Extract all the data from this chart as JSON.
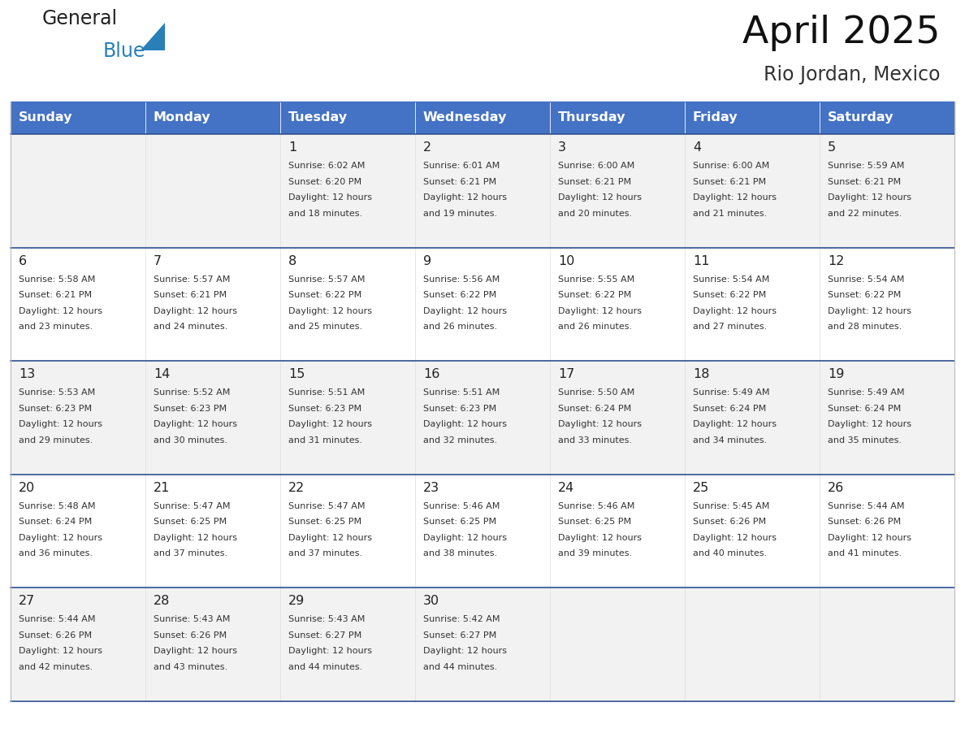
{
  "title": "April 2025",
  "subtitle": "Rio Jordan, Mexico",
  "header_color": "#4472C4",
  "header_text_color": "#FFFFFF",
  "row_separator_color": "#2F528F",
  "cell_bg_light": "#F2F2F2",
  "cell_bg_white": "#FFFFFF",
  "day_names": [
    "Sunday",
    "Monday",
    "Tuesday",
    "Wednesday",
    "Thursday",
    "Friday",
    "Saturday"
  ],
  "weeks": [
    [
      {
        "day": "",
        "sunrise": "",
        "sunset": "",
        "daylight": ""
      },
      {
        "day": "",
        "sunrise": "",
        "sunset": "",
        "daylight": ""
      },
      {
        "day": "1",
        "sunrise": "Sunrise: 6:02 AM",
        "sunset": "Sunset: 6:20 PM",
        "daylight": "Daylight: 12 hours\nand 18 minutes."
      },
      {
        "day": "2",
        "sunrise": "Sunrise: 6:01 AM",
        "sunset": "Sunset: 6:21 PM",
        "daylight": "Daylight: 12 hours\nand 19 minutes."
      },
      {
        "day": "3",
        "sunrise": "Sunrise: 6:00 AM",
        "sunset": "Sunset: 6:21 PM",
        "daylight": "Daylight: 12 hours\nand 20 minutes."
      },
      {
        "day": "4",
        "sunrise": "Sunrise: 6:00 AM",
        "sunset": "Sunset: 6:21 PM",
        "daylight": "Daylight: 12 hours\nand 21 minutes."
      },
      {
        "day": "5",
        "sunrise": "Sunrise: 5:59 AM",
        "sunset": "Sunset: 6:21 PM",
        "daylight": "Daylight: 12 hours\nand 22 minutes."
      }
    ],
    [
      {
        "day": "6",
        "sunrise": "Sunrise: 5:58 AM",
        "sunset": "Sunset: 6:21 PM",
        "daylight": "Daylight: 12 hours\nand 23 minutes."
      },
      {
        "day": "7",
        "sunrise": "Sunrise: 5:57 AM",
        "sunset": "Sunset: 6:21 PM",
        "daylight": "Daylight: 12 hours\nand 24 minutes."
      },
      {
        "day": "8",
        "sunrise": "Sunrise: 5:57 AM",
        "sunset": "Sunset: 6:22 PM",
        "daylight": "Daylight: 12 hours\nand 25 minutes."
      },
      {
        "day": "9",
        "sunrise": "Sunrise: 5:56 AM",
        "sunset": "Sunset: 6:22 PM",
        "daylight": "Daylight: 12 hours\nand 26 minutes."
      },
      {
        "day": "10",
        "sunrise": "Sunrise: 5:55 AM",
        "sunset": "Sunset: 6:22 PM",
        "daylight": "Daylight: 12 hours\nand 26 minutes."
      },
      {
        "day": "11",
        "sunrise": "Sunrise: 5:54 AM",
        "sunset": "Sunset: 6:22 PM",
        "daylight": "Daylight: 12 hours\nand 27 minutes."
      },
      {
        "day": "12",
        "sunrise": "Sunrise: 5:54 AM",
        "sunset": "Sunset: 6:22 PM",
        "daylight": "Daylight: 12 hours\nand 28 minutes."
      }
    ],
    [
      {
        "day": "13",
        "sunrise": "Sunrise: 5:53 AM",
        "sunset": "Sunset: 6:23 PM",
        "daylight": "Daylight: 12 hours\nand 29 minutes."
      },
      {
        "day": "14",
        "sunrise": "Sunrise: 5:52 AM",
        "sunset": "Sunset: 6:23 PM",
        "daylight": "Daylight: 12 hours\nand 30 minutes."
      },
      {
        "day": "15",
        "sunrise": "Sunrise: 5:51 AM",
        "sunset": "Sunset: 6:23 PM",
        "daylight": "Daylight: 12 hours\nand 31 minutes."
      },
      {
        "day": "16",
        "sunrise": "Sunrise: 5:51 AM",
        "sunset": "Sunset: 6:23 PM",
        "daylight": "Daylight: 12 hours\nand 32 minutes."
      },
      {
        "day": "17",
        "sunrise": "Sunrise: 5:50 AM",
        "sunset": "Sunset: 6:24 PM",
        "daylight": "Daylight: 12 hours\nand 33 minutes."
      },
      {
        "day": "18",
        "sunrise": "Sunrise: 5:49 AM",
        "sunset": "Sunset: 6:24 PM",
        "daylight": "Daylight: 12 hours\nand 34 minutes."
      },
      {
        "day": "19",
        "sunrise": "Sunrise: 5:49 AM",
        "sunset": "Sunset: 6:24 PM",
        "daylight": "Daylight: 12 hours\nand 35 minutes."
      }
    ],
    [
      {
        "day": "20",
        "sunrise": "Sunrise: 5:48 AM",
        "sunset": "Sunset: 6:24 PM",
        "daylight": "Daylight: 12 hours\nand 36 minutes."
      },
      {
        "day": "21",
        "sunrise": "Sunrise: 5:47 AM",
        "sunset": "Sunset: 6:25 PM",
        "daylight": "Daylight: 12 hours\nand 37 minutes."
      },
      {
        "day": "22",
        "sunrise": "Sunrise: 5:47 AM",
        "sunset": "Sunset: 6:25 PM",
        "daylight": "Daylight: 12 hours\nand 37 minutes."
      },
      {
        "day": "23",
        "sunrise": "Sunrise: 5:46 AM",
        "sunset": "Sunset: 6:25 PM",
        "daylight": "Daylight: 12 hours\nand 38 minutes."
      },
      {
        "day": "24",
        "sunrise": "Sunrise: 5:46 AM",
        "sunset": "Sunset: 6:25 PM",
        "daylight": "Daylight: 12 hours\nand 39 minutes."
      },
      {
        "day": "25",
        "sunrise": "Sunrise: 5:45 AM",
        "sunset": "Sunset: 6:26 PM",
        "daylight": "Daylight: 12 hours\nand 40 minutes."
      },
      {
        "day": "26",
        "sunrise": "Sunrise: 5:44 AM",
        "sunset": "Sunset: 6:26 PM",
        "daylight": "Daylight: 12 hours\nand 41 minutes."
      }
    ],
    [
      {
        "day": "27",
        "sunrise": "Sunrise: 5:44 AM",
        "sunset": "Sunset: 6:26 PM",
        "daylight": "Daylight: 12 hours\nand 42 minutes."
      },
      {
        "day": "28",
        "sunrise": "Sunrise: 5:43 AM",
        "sunset": "Sunset: 6:26 PM",
        "daylight": "Daylight: 12 hours\nand 43 minutes."
      },
      {
        "day": "29",
        "sunrise": "Sunrise: 5:43 AM",
        "sunset": "Sunset: 6:27 PM",
        "daylight": "Daylight: 12 hours\nand 44 minutes."
      },
      {
        "day": "30",
        "sunrise": "Sunrise: 5:42 AM",
        "sunset": "Sunset: 6:27 PM",
        "daylight": "Daylight: 12 hours\nand 44 minutes."
      },
      {
        "day": "",
        "sunrise": "",
        "sunset": "",
        "daylight": ""
      },
      {
        "day": "",
        "sunrise": "",
        "sunset": "",
        "daylight": ""
      },
      {
        "day": "",
        "sunrise": "",
        "sunset": "",
        "daylight": ""
      }
    ]
  ],
  "logo_general_color": "#222222",
  "logo_blue_color": "#2980B9",
  "logo_triangle_color": "#2980B9"
}
